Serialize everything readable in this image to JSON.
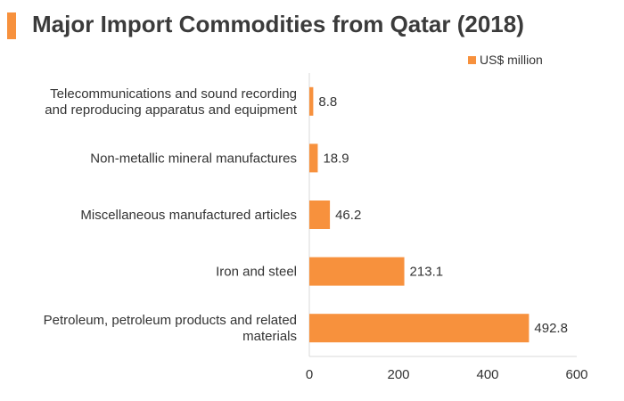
{
  "title": "Major Import Commodities from Qatar (2018)",
  "colors": {
    "bar": "#f7913d",
    "accent": "#f7913d",
    "axis": "#d9d9d9",
    "text": "#333333"
  },
  "chart_data": {
    "type": "bar",
    "orientation": "horizontal",
    "title": "Major Import Commodities from Qatar (2018)",
    "categories": [
      [
        "Telecommunications and sound recording",
        "and reproducing apparatus and equipment"
      ],
      [
        "Non-metallic mineral manufactures"
      ],
      [
        "Miscellaneous manufactured articles"
      ],
      [
        "Iron and steel"
      ],
      [
        "Petroleum, petroleum products and related",
        "materials"
      ]
    ],
    "series": [
      {
        "name": "US$ million",
        "values": [
          8.8,
          18.9,
          46.2,
          213.1,
          492.8
        ],
        "labels": [
          "8.8",
          "18.9",
          "46.2",
          "213.1",
          "492.8"
        ]
      }
    ],
    "xlim": [
      0,
      600
    ],
    "xticks": [
      0,
      200,
      400,
      600
    ],
    "xlabel": "",
    "ylabel": "",
    "grid": false,
    "legend": "top-right"
  }
}
